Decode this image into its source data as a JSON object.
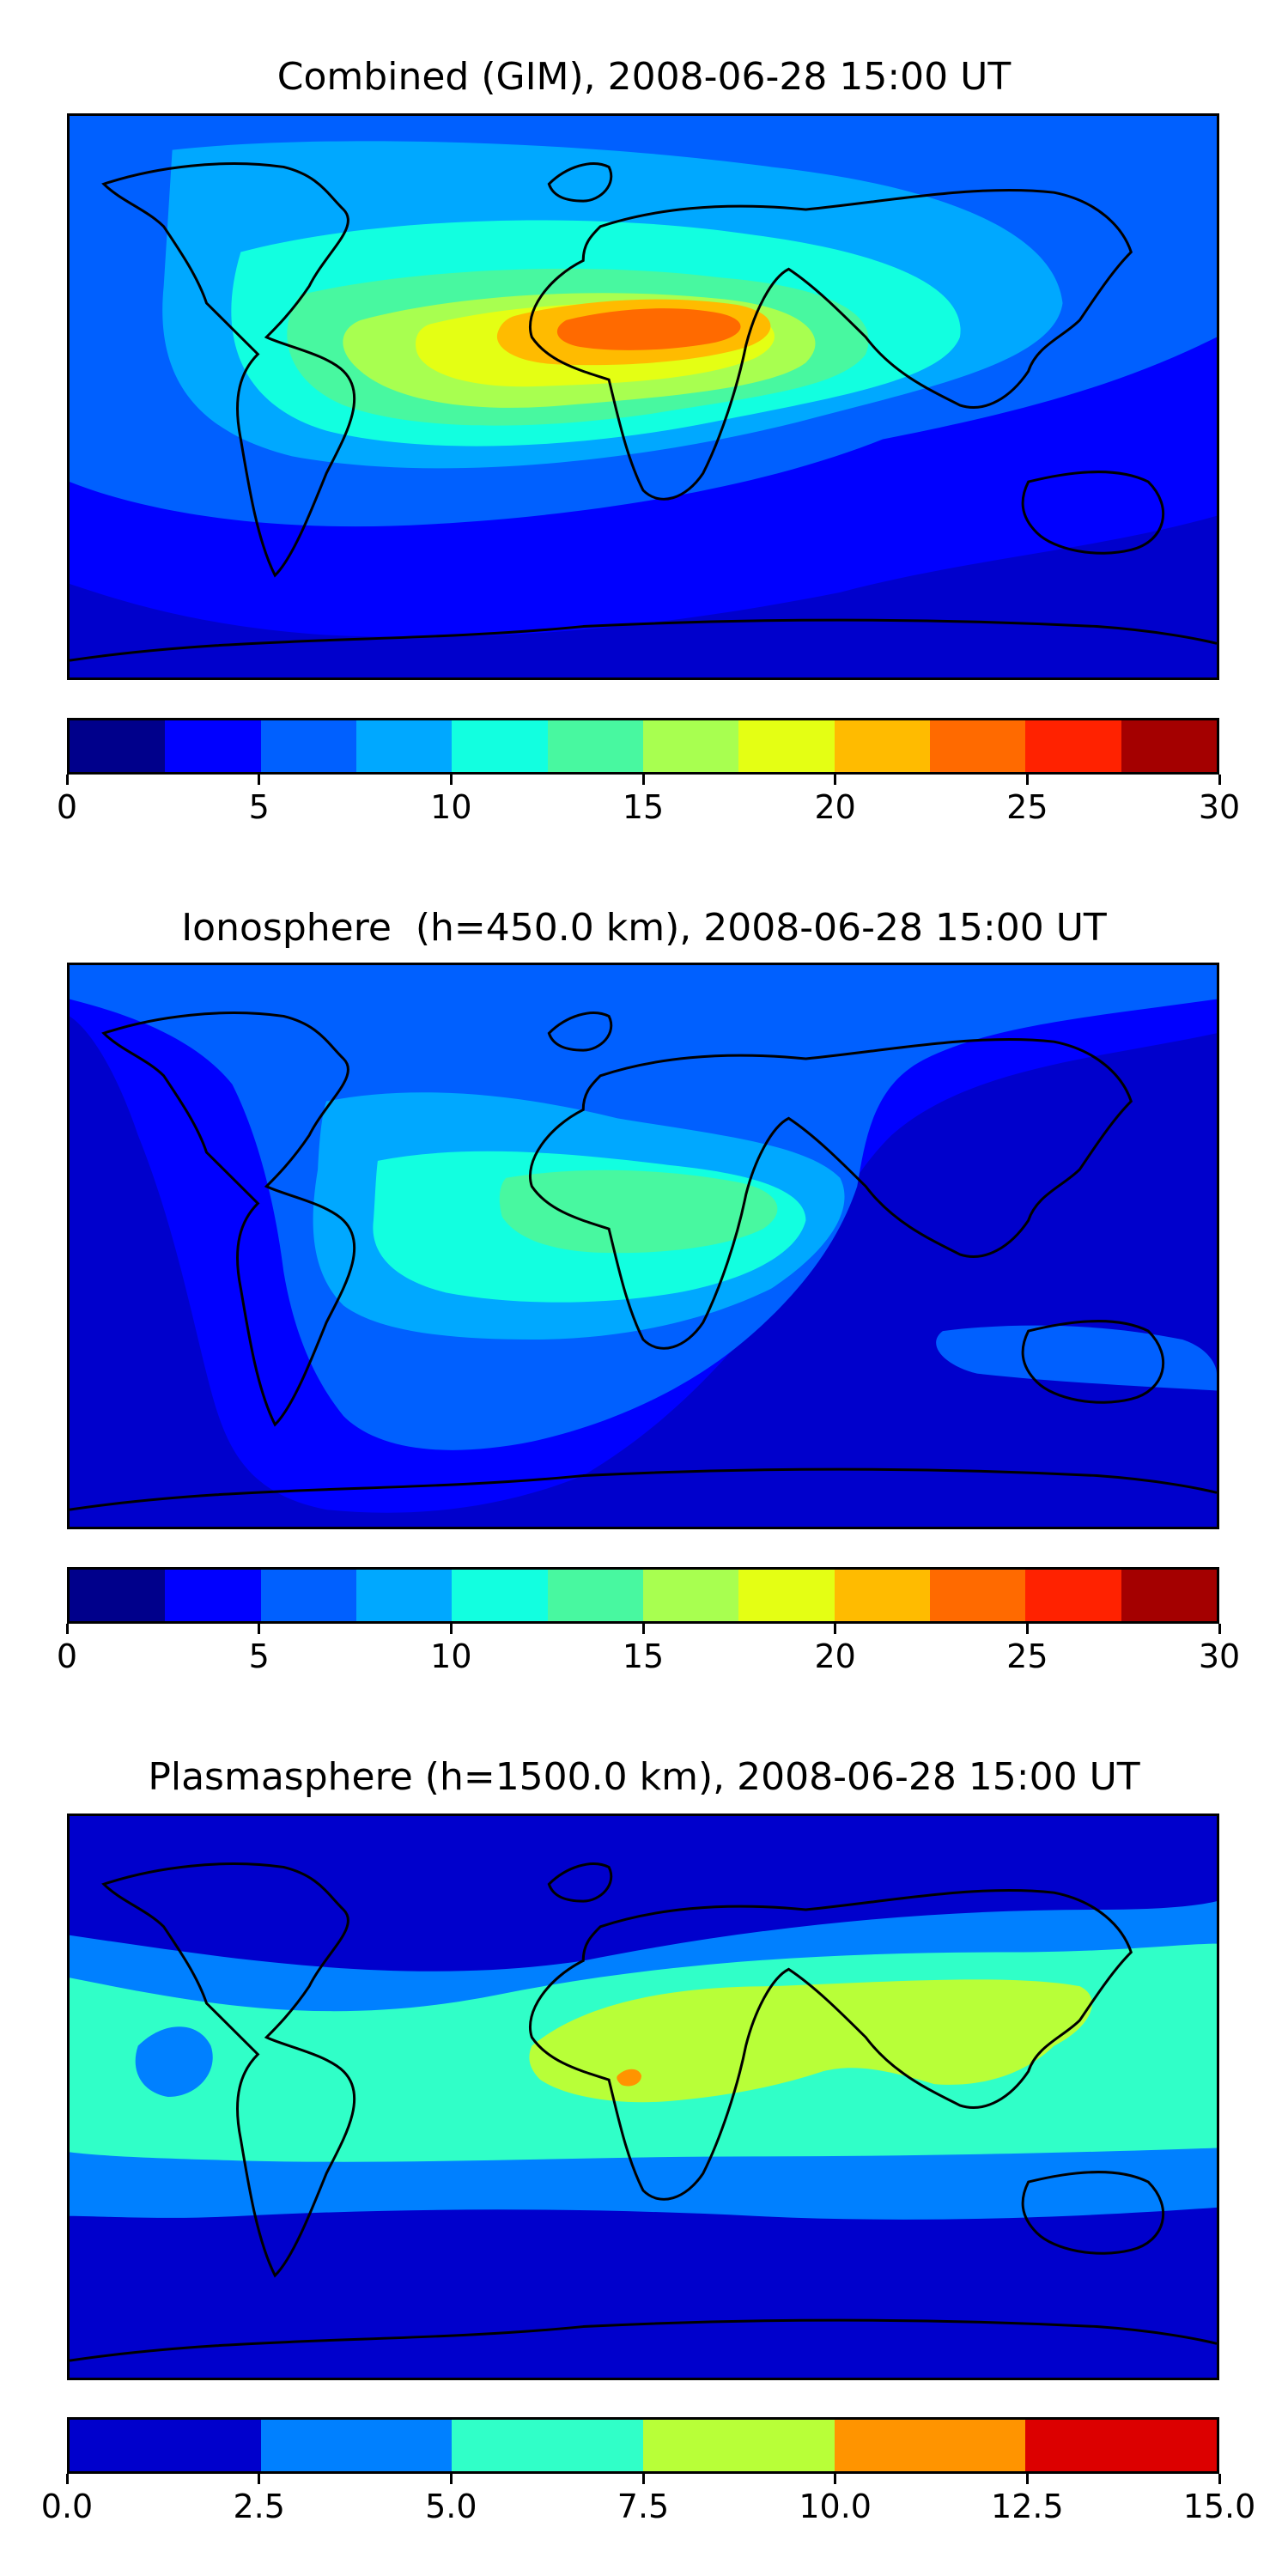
{
  "panels": [
    {
      "title": "Combined (GIM), 2008-06-28 15:00 UT",
      "colors": [
        "#00008b",
        "#0000ff",
        "#0060ff",
        "#00a8ff",
        "#12ffe0",
        "#48f8a0",
        "#a8ff50",
        "#e4ff14",
        "#ffbb00",
        "#ff6a00",
        "#ff2200",
        "#a40000"
      ],
      "ticks": [
        "0",
        "5",
        "10",
        "15",
        "20",
        "25",
        "30"
      ],
      "range": [
        0,
        30
      ]
    },
    {
      "title": "Ionosphere  (h=450.0 km), 2008-06-28 15:00 UT",
      "colors": [
        "#00008b",
        "#0000ff",
        "#0060ff",
        "#00a8ff",
        "#12ffe0",
        "#48f8a0",
        "#a8ff50",
        "#e4ff14",
        "#ffbb00",
        "#ff6a00",
        "#ff2200",
        "#a40000"
      ],
      "ticks": [
        "0",
        "5",
        "10",
        "15",
        "20",
        "25",
        "30"
      ],
      "range": [
        0,
        30
      ]
    },
    {
      "title": "Plasmasphere (h=1500.0 km), 2008-06-28 15:00 UT",
      "colors": [
        "#0000cc",
        "#0080ff",
        "#30ffc8",
        "#b8ff38",
        "#ff9400",
        "#dc0000"
      ],
      "ticks": [
        "0.0",
        "2.5",
        "5.0",
        "7.5",
        "10.0",
        "12.5",
        "15.0"
      ],
      "range": [
        0,
        15
      ]
    }
  ]
}
